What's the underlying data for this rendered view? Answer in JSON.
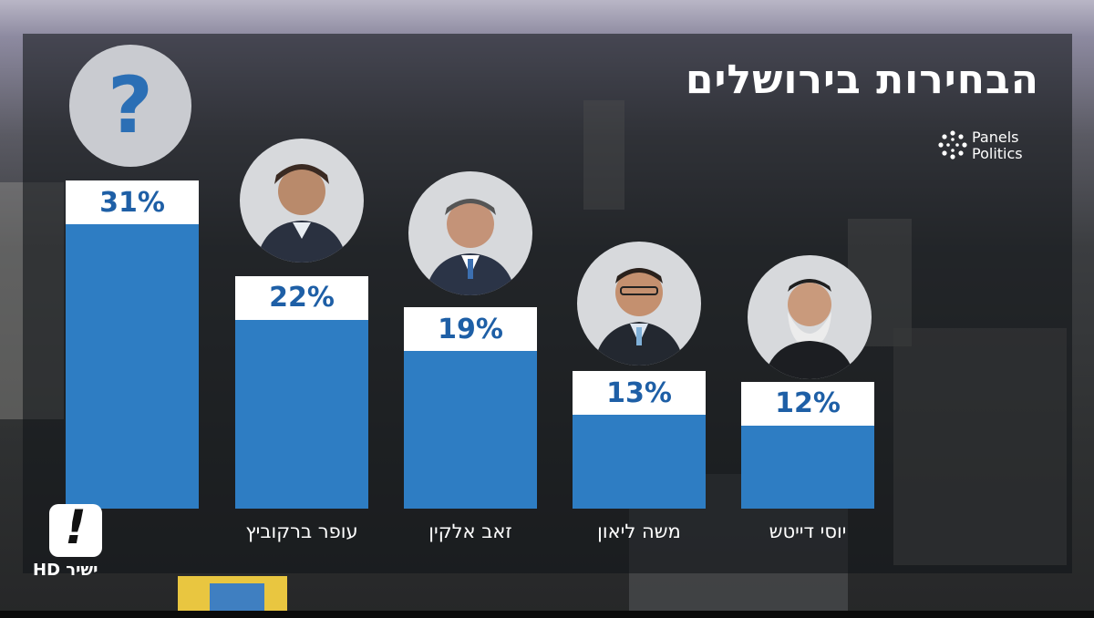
{
  "title": "הבחירות בירושלים",
  "source_logo": {
    "line1": "Panels",
    "line2": "Politics"
  },
  "channel_logo": {
    "mark": "!",
    "text": "ישיר HD"
  },
  "colors": {
    "bar": "#2e7dc3",
    "label_bg": "#ffffff",
    "label_text": "#1e5fa6",
    "question_mark": "#2b6fb5"
  },
  "unknown_candidate_symbol": "?",
  "chart_data": {
    "type": "bar",
    "title": "הבחירות בירושלים",
    "categories": [
      "",
      "עופר ברקוביץ",
      "זאב אלקין",
      "משה ליאון",
      "יוסי דייטש"
    ],
    "values": [
      31,
      22,
      19,
      13,
      12
    ],
    "value_labels": [
      "31%",
      "22%",
      "19%",
      "13%",
      "12%"
    ],
    "ylim": [
      0,
      31
    ],
    "grid": false,
    "legend": "none"
  }
}
